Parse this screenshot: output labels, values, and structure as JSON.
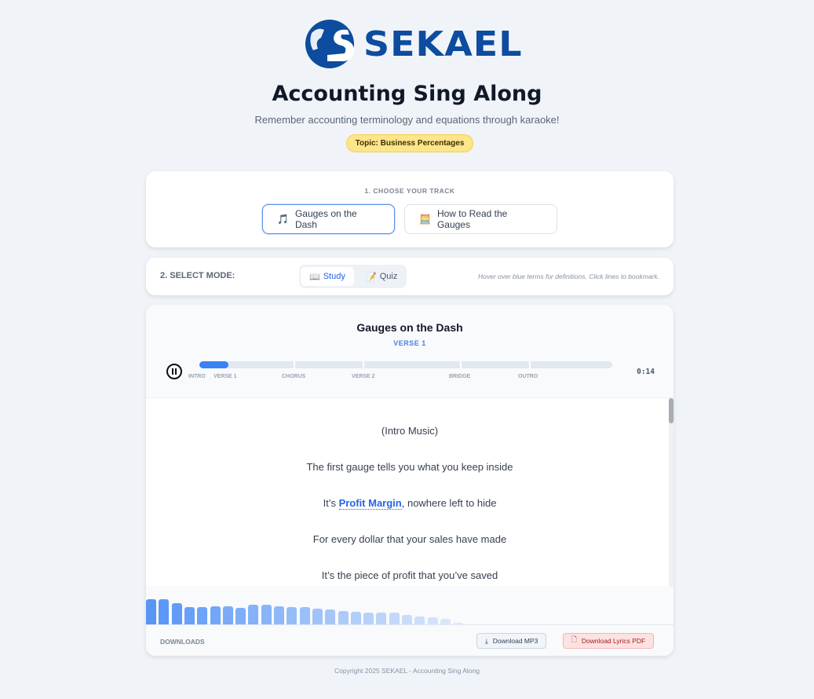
{
  "brand": {
    "name": "SEKAEL",
    "color": "#0d4c9e"
  },
  "header": {
    "title": "Accounting Sing Along",
    "subtitle": "Remember accounting terminology and equations through karaoke!",
    "topic_badge": "Topic: Business Percentages"
  },
  "tracks": {
    "label": "1. CHOOSE YOUR TRACK",
    "items": [
      {
        "label": "Gauges on the Dash",
        "icon": "music-note-icon",
        "selected": true
      },
      {
        "label": "How to Read the Gauges",
        "icon": "calculator-icon",
        "selected": false
      }
    ]
  },
  "mode": {
    "label": "2. SELECT MODE:",
    "options": [
      {
        "label": "Study",
        "icon": "book-icon",
        "selected": true
      },
      {
        "label": "Quiz",
        "icon": "memo-icon",
        "selected": false
      }
    ],
    "hint": "Hover over blue terms for definitions. Click lines to bookmark."
  },
  "player": {
    "song_title": "Gauges on the Dash",
    "current_section": "VERSE 1",
    "time": "0:14",
    "progress_percent": 7,
    "state": "playing",
    "accent": "#3b82f6",
    "markers": [
      "INTRO",
      "VERSE 1",
      "CHORUS",
      "VERSE 2",
      "BRIDGE",
      "OUTRO"
    ]
  },
  "lyrics": [
    {
      "text": "(Intro Music)"
    },
    {
      "text": "The first gauge tells you what you keep inside"
    },
    {
      "pre": "It’s ",
      "term": "Profit Margin",
      "post": ", nowhere left to hide"
    },
    {
      "text": "For every dollar that your sales have made"
    },
    {
      "text": "It’s the piece of profit that you’ve saved"
    }
  ],
  "visualizer_levels": [
    32,
    32,
    27,
    22,
    22,
    23,
    23,
    21,
    25,
    25,
    23,
    22,
    22,
    20,
    19,
    17,
    16,
    15,
    15,
    15,
    12,
    10,
    9,
    7,
    2
  ],
  "downloads": {
    "label": "DOWNLOADS",
    "mp3": "Download MP3",
    "pdf": "Download Lyrics PDF"
  },
  "footer": {
    "copyright": "Copyright 2025 SEKAEL - Accounting Sing Along"
  }
}
